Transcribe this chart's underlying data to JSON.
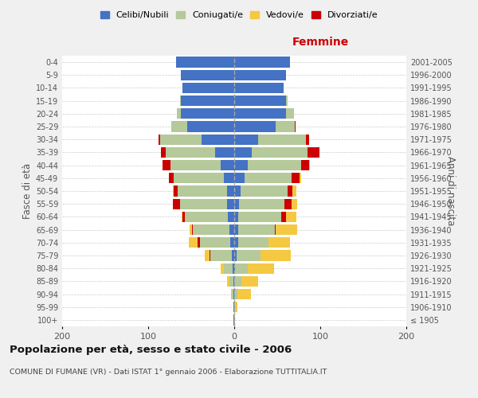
{
  "age_groups": [
    "100+",
    "95-99",
    "90-94",
    "85-89",
    "80-84",
    "75-79",
    "70-74",
    "65-69",
    "60-64",
    "55-59",
    "50-54",
    "45-49",
    "40-44",
    "35-39",
    "30-34",
    "25-29",
    "20-24",
    "15-19",
    "10-14",
    "5-9",
    "0-4"
  ],
  "birth_years": [
    "≤ 1905",
    "1906-1910",
    "1911-1915",
    "1916-1920",
    "1921-1925",
    "1926-1930",
    "1931-1935",
    "1936-1940",
    "1941-1945",
    "1946-1950",
    "1951-1955",
    "1956-1960",
    "1961-1965",
    "1966-1970",
    "1971-1975",
    "1976-1980",
    "1981-1985",
    "1986-1990",
    "1991-1995",
    "1996-2000",
    "2001-2005"
  ],
  "males": {
    "celibi": [
      1,
      1,
      1,
      1,
      2,
      3,
      5,
      6,
      7,
      8,
      8,
      12,
      16,
      22,
      38,
      55,
      62,
      62,
      60,
      62,
      68
    ],
    "coniugati": [
      0,
      0,
      2,
      5,
      10,
      25,
      35,
      42,
      50,
      55,
      58,
      58,
      58,
      58,
      48,
      18,
      5,
      1,
      0,
      0,
      0
    ],
    "vedovi": [
      0,
      0,
      1,
      2,
      4,
      5,
      10,
      3,
      1,
      0,
      1,
      0,
      0,
      0,
      0,
      0,
      0,
      0,
      0,
      0,
      0
    ],
    "divorziati": [
      0,
      0,
      0,
      0,
      0,
      1,
      3,
      1,
      3,
      8,
      4,
      6,
      9,
      5,
      2,
      0,
      0,
      0,
      0,
      0,
      0
    ]
  },
  "females": {
    "nubili": [
      0,
      0,
      0,
      0,
      1,
      3,
      5,
      5,
      5,
      6,
      7,
      12,
      16,
      20,
      28,
      48,
      60,
      60,
      57,
      60,
      65
    ],
    "coniugate": [
      0,
      1,
      4,
      8,
      15,
      28,
      35,
      42,
      50,
      52,
      55,
      55,
      62,
      65,
      55,
      22,
      9,
      2,
      0,
      0,
      0
    ],
    "vedove": [
      1,
      3,
      15,
      20,
      30,
      35,
      25,
      25,
      12,
      6,
      4,
      2,
      1,
      0,
      0,
      0,
      0,
      0,
      0,
      0,
      0
    ],
    "divorziate": [
      0,
      0,
      0,
      0,
      0,
      0,
      0,
      1,
      5,
      9,
      6,
      9,
      9,
      14,
      4,
      1,
      0,
      0,
      0,
      0,
      0
    ]
  },
  "colors": {
    "celibi_nubili": "#4472c4",
    "coniugati_e": "#b5c99a",
    "vedovi_e": "#f5c842",
    "divorziati_e": "#cc0000"
  },
  "xlim": 200,
  "title": "Popolazione per età, sesso e stato civile - 2006",
  "subtitle": "COMUNE DI FUMANE (VR) - Dati ISTAT 1° gennaio 2006 - Elaborazione TUTTITALIA.IT",
  "ylabel_left": "Fasce di età",
  "ylabel_right": "Anni di nascita",
  "xlabel_right": "Femmine",
  "bg_color": "#f0f0f0",
  "plot_bg_color": "#ffffff"
}
